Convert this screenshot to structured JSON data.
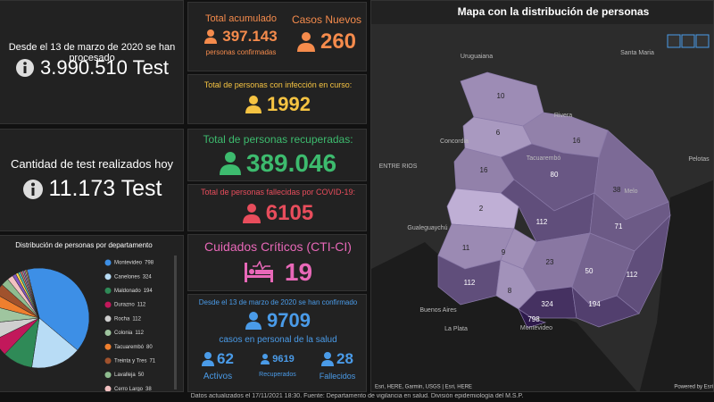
{
  "left": {
    "processed": {
      "label": "Desde el 13 de marzo de 2020 se han procesado",
      "value": "3.990.510 Test"
    },
    "today": {
      "label": "Cantidad de test realizados hoy",
      "value": "11.173 Test"
    }
  },
  "pie": {
    "type": "pie",
    "title": "Distribución de personas por departamento",
    "categories": [
      "Montevideo",
      "Canelones",
      "Maldonado",
      "Durazno",
      "Rocha",
      "Colonia",
      "Tacuarembó",
      "Treinta y Tres",
      "Lavalleja",
      "Cerro Largo",
      null,
      null,
      null,
      null,
      null,
      null,
      null,
      null
    ],
    "values": [
      798,
      324,
      194,
      112,
      112,
      112,
      80,
      71,
      50,
      38,
      23,
      16,
      16,
      11,
      10,
      9,
      8,
      6
    ],
    "colors": [
      "#3d8fe6",
      "#b8dcf5",
      "#2f8a57",
      "#c2185b",
      "#cfcfcf",
      "#9fc59f",
      "#ef7f2e",
      "#a0522d",
      "#8fbc8f",
      "#f2c1c1",
      "#7e57c2",
      "#ffd54f",
      "#4db6ac",
      "#e57373",
      "#90a4ae",
      "#ba68c8",
      "#aed581",
      "#ff8a65"
    ]
  },
  "cards": {
    "accumulated": {
      "label": "Total acumulado",
      "value": "397.143",
      "sub": "personas confirmadas"
    },
    "new": {
      "label": "Casos Nuevos",
      "value": "260"
    },
    "active": {
      "label": "Total de personas con infección en curso:",
      "value": "1992"
    },
    "recovered": {
      "label": "Total de personas recuperadas:",
      "value": "389.046"
    },
    "deaths": {
      "label": "Total de personas fallecidas por COVID-19:",
      "value": "6105"
    },
    "cti": {
      "label": "Cuidados Críticos (CTI-CI)",
      "value": "19"
    },
    "health": {
      "label": "Desde el 13 de marzo de 2020 se han confirmado",
      "value": "9709",
      "sub": "casos en personal de la salud",
      "active": {
        "value": "62",
        "label": "Activos"
      },
      "recovered": {
        "value": "9619",
        "label": "Recuperados"
      },
      "deaths": {
        "value": "28",
        "label": "Fallecidos"
      }
    }
  },
  "map": {
    "title": "Mapa con la distribución de personas",
    "regions": [
      10,
      6,
      16,
      16,
      80,
      38,
      2,
      112,
      71,
      11,
      9,
      23,
      50,
      112,
      112,
      8,
      324,
      194,
      798
    ],
    "places": [
      "Uruguaiana",
      "Santa Maria",
      "Concordia",
      "Tacuarembó",
      "ENTRE RIOS",
      "Gualeguaychú",
      "Buenos Aires",
      "La Plata",
      "Montevideo",
      "Pelotas",
      "Rivera",
      "Melo"
    ],
    "attribution": "Esri, HERE, Garmin, USGS | Esri, HERE",
    "powered": "Powered by Esri"
  },
  "footer": "Datos actualizados el 17/11/2021 18:30. Fuente: Departamento de vigilancia en salud. División epidemiología del M.S.P."
}
